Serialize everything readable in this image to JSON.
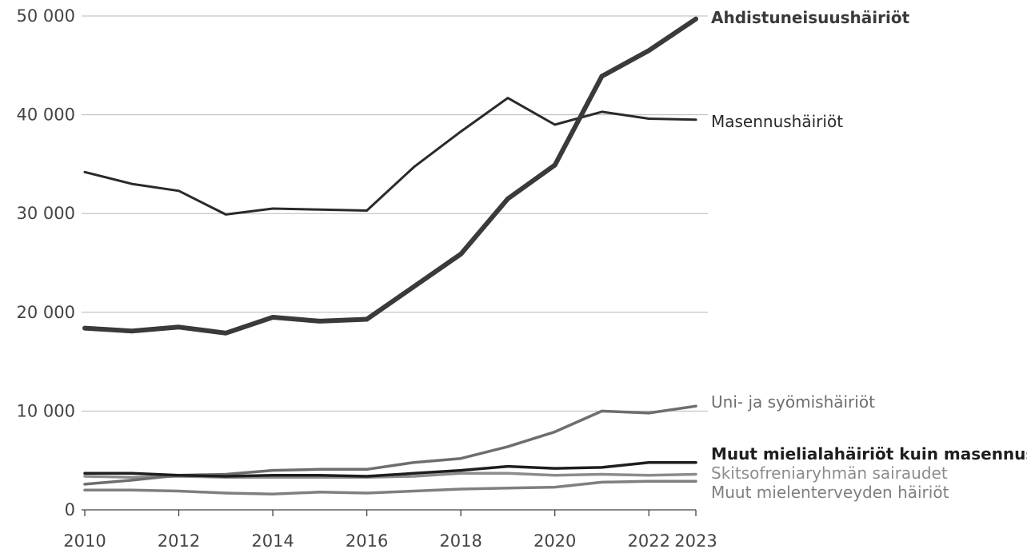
{
  "chart_data": {
    "type": "line",
    "title": "",
    "xlabel": "",
    "ylabel": "",
    "x": [
      2010,
      2011,
      2012,
      2013,
      2014,
      2015,
      2016,
      2017,
      2018,
      2019,
      2020,
      2021,
      2022,
      2023
    ],
    "xlim": [
      2010,
      2023
    ],
    "ylim": [
      0,
      50000
    ],
    "x_tick_labels": [
      "2010",
      "2012",
      "2014",
      "2016",
      "2018",
      "2020",
      "2022",
      "2023"
    ],
    "y_tick_labels": [
      "0",
      "10 000",
      "20 000",
      "30 000",
      "40 000",
      "50 000"
    ],
    "grid": true,
    "legend": "direct labels at line ends (right)",
    "series": [
      {
        "name": "Ahdistuneisuushäiriöt",
        "color": "#3a3a3a",
        "bold": true,
        "values": [
          18400,
          18100,
          18500,
          17900,
          19500,
          19100,
          19300,
          22600,
          25900,
          31500,
          34900,
          43900,
          46500,
          49700
        ]
      },
      {
        "name": "Masennushäiriöt",
        "color": "#2a2a2a",
        "bold": false,
        "values": [
          34200,
          33000,
          32300,
          29900,
          30500,
          30400,
          30300,
          34700,
          38300,
          41700,
          39000,
          40300,
          39600,
          39500
        ]
      },
      {
        "name": "Uni- ja syömishäiriöt",
        "color": "#6e6e6e",
        "bold": false,
        "values": [
          2600,
          3000,
          3500,
          3600,
          4000,
          4100,
          4100,
          4800,
          5200,
          6400,
          7900,
          10000,
          9800,
          10500
        ]
      },
      {
        "name": "Muut mielialahäiriöt kuin masennus",
        "color": "#1e1e1e",
        "bold": true,
        "values": [
          3700,
          3700,
          3500,
          3400,
          3500,
          3500,
          3400,
          3700,
          4000,
          4400,
          4200,
          4300,
          4800,
          4800
        ]
      },
      {
        "name": "Skitsofreniaryhmän sairaudet",
        "color": "#8c8c8c",
        "bold": false,
        "values": [
          3400,
          3300,
          3400,
          3300,
          3300,
          3300,
          3300,
          3400,
          3700,
          3700,
          3500,
          3600,
          3500,
          3600
        ]
      },
      {
        "name": "Muut mielenterveyden häiriöt",
        "color": "#7f7f7f",
        "bold": false,
        "values": [
          2000,
          2000,
          1900,
          1700,
          1600,
          1800,
          1700,
          1900,
          2100,
          2200,
          2300,
          2800,
          2900,
          2900
        ]
      }
    ]
  }
}
